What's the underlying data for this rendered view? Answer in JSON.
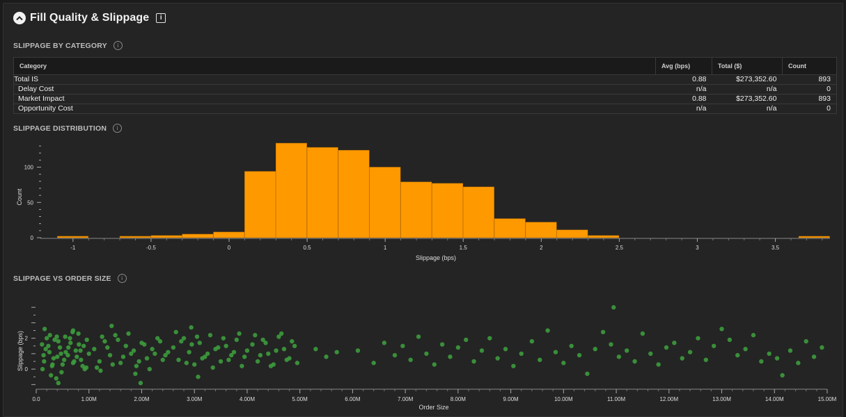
{
  "header": {
    "title": "Fill Quality & Slippage",
    "info_glyph": "i",
    "collapse_icon": "chevron-up-icon"
  },
  "sections": {
    "category": "SLIPPAGE BY CATEGORY",
    "distribution": "SLIPPAGE DISTRIBUTION",
    "vs_size": "SLIPPAGE VS ORDER SIZE",
    "info_glyph": "i"
  },
  "table": {
    "columns": [
      "Category",
      "Avg (bps)",
      "Total ($)",
      "Count"
    ],
    "rows": [
      {
        "category": "Total IS",
        "avg": "0.88",
        "total": "$273,352.60",
        "count": "893"
      },
      {
        "category": "Delay Cost",
        "avg": "n/a",
        "total": "n/a",
        "count": "0"
      },
      {
        "category": "Market Impact",
        "avg": "0.88",
        "total": "$273,352.60",
        "count": "893"
      },
      {
        "category": "Opportunity Cost",
        "avg": "n/a",
        "total": "n/a",
        "count": "0"
      }
    ]
  },
  "colors": {
    "histogram": "#ff9900",
    "scatter": "#3d9b3d",
    "background": "#242424"
  },
  "chart_data": [
    {
      "type": "bar",
      "title": "SLIPPAGE DISTRIBUTION",
      "xlabel": "Slippage (bps)",
      "ylabel": "Count",
      "bin_width": 0.2,
      "xlim": [
        -1.2,
        3.85
      ],
      "ylim": [
        0,
        135
      ],
      "x_ticks": [
        "-1",
        "-0.5",
        "0",
        "0.5",
        "1",
        "1.5",
        "2",
        "2.5",
        "3",
        "3.5"
      ],
      "y_ticks": [
        "0",
        "50",
        "100"
      ],
      "bins": [
        {
          "start": -1.1,
          "count": 2
        },
        {
          "start": -0.7,
          "count": 2
        },
        {
          "start": -0.5,
          "count": 3
        },
        {
          "start": -0.3,
          "count": 5
        },
        {
          "start": -0.1,
          "count": 8
        },
        {
          "start": 0.1,
          "count": 94
        },
        {
          "start": 0.3,
          "count": 134
        },
        {
          "start": 0.5,
          "count": 128
        },
        {
          "start": 0.7,
          "count": 124
        },
        {
          "start": 0.9,
          "count": 100
        },
        {
          "start": 1.1,
          "count": 79
        },
        {
          "start": 1.3,
          "count": 77
        },
        {
          "start": 1.5,
          "count": 72
        },
        {
          "start": 1.7,
          "count": 27
        },
        {
          "start": 1.9,
          "count": 22
        },
        {
          "start": 2.1,
          "count": 11
        },
        {
          "start": 2.3,
          "count": 3
        },
        {
          "start": 3.65,
          "count": 1
        }
      ],
      "grid": false
    },
    {
      "type": "scatter",
      "title": "SLIPPAGE VS ORDER SIZE",
      "xlabel": "Order Size",
      "ylabel": "Slippage (bps)",
      "xlim": [
        0,
        15000000
      ],
      "ylim": [
        -1.3,
        4.1
      ],
      "x_ticks": [
        "0.0",
        "1.00M",
        "2.00M",
        "3.00M",
        "4.00M",
        "5.00M",
        "6.00M",
        "7.00M",
        "8.00M",
        "9.00M",
        "10.00M",
        "11.00M",
        "12.00M",
        "13.00M",
        "14.00M",
        "15.00M"
      ],
      "y_ticks": [
        "0",
        "2"
      ],
      "points": [
        [
          110000,
          1.6
        ],
        [
          150000,
          0.5
        ],
        [
          200000,
          2.0
        ],
        [
          250000,
          1.1
        ],
        [
          300000,
          0.2
        ],
        [
          350000,
          1.9
        ],
        [
          400000,
          0.8
        ],
        [
          450000,
          1.4
        ],
        [
          500000,
          0.3
        ],
        [
          550000,
          2.1
        ],
        [
          600000,
          0.9
        ],
        [
          650000,
          1.7
        ],
        [
          700000,
          0.4
        ],
        [
          750000,
          1.2
        ],
        [
          800000,
          2.3
        ],
        [
          850000,
          0.6
        ],
        [
          900000,
          1.5
        ],
        [
          950000,
          0.1
        ],
        [
          1000000,
          1.0
        ],
        [
          120000,
          0.0
        ],
        [
          180000,
          1.3
        ],
        [
          260000,
          2.2
        ],
        [
          330000,
          0.7
        ],
        [
          420000,
          1.8
        ],
        [
          480000,
          -0.2
        ],
        [
          560000,
          1.1
        ],
        [
          640000,
          2.0
        ],
        [
          720000,
          0.5
        ],
        [
          810000,
          1.6
        ],
        [
          880000,
          0.2
        ],
        [
          960000,
          1.9
        ],
        [
          140000,
          0.9
        ],
        [
          230000,
          1.5
        ],
        [
          310000,
          0.3
        ],
        [
          390000,
          2.1
        ],
        [
          470000,
          1.0
        ],
        [
          530000,
          0.6
        ],
        [
          610000,
          1.4
        ],
        [
          690000,
          2.4
        ],
        [
          770000,
          0.8
        ],
        [
          840000,
          1.2
        ],
        [
          920000,
          0.0
        ],
        [
          160000,
          2.6
        ],
        [
          380000,
          -0.6
        ],
        [
          420000,
          -0.9
        ],
        [
          280000,
          -0.4
        ],
        [
          700000,
          2.5
        ],
        [
          1100000,
          1.3
        ],
        [
          1200000,
          0.5
        ],
        [
          1300000,
          1.8
        ],
        [
          1400000,
          0.9
        ],
        [
          1500000,
          2.2
        ],
        [
          1600000,
          0.4
        ],
        [
          1700000,
          1.5
        ],
        [
          1800000,
          1.0
        ],
        [
          1900000,
          0.2
        ],
        [
          2000000,
          1.7
        ],
        [
          2100000,
          0.7
        ],
        [
          2200000,
          1.3
        ],
        [
          2300000,
          2.0
        ],
        [
          2400000,
          0.6
        ],
        [
          2500000,
          1.1
        ],
        [
          1150000,
          0.1
        ],
        [
          1250000,
          2.1
        ],
        [
          1350000,
          1.4
        ],
        [
          1450000,
          0.3
        ],
        [
          1550000,
          1.9
        ],
        [
          1650000,
          0.8
        ],
        [
          1750000,
          2.3
        ],
        [
          1850000,
          1.2
        ],
        [
          1950000,
          0.5
        ],
        [
          2050000,
          1.6
        ],
        [
          2150000,
          0.0
        ],
        [
          2250000,
          1.0
        ],
        [
          2350000,
          1.8
        ],
        [
          2450000,
          0.9
        ],
        [
          1430000,
          2.8
        ],
        [
          1880000,
          -0.3
        ],
        [
          1980000,
          -0.9
        ],
        [
          1220000,
          -0.1
        ],
        [
          2600000,
          1.4
        ],
        [
          2700000,
          0.6
        ],
        [
          2800000,
          2.0
        ],
        [
          2900000,
          1.1
        ],
        [
          3000000,
          0.3
        ],
        [
          3100000,
          1.7
        ],
        [
          3200000,
          0.8
        ],
        [
          3300000,
          2.2
        ],
        [
          3400000,
          1.3
        ],
        [
          3500000,
          0.5
        ],
        [
          3600000,
          1.5
        ],
        [
          3700000,
          0.9
        ],
        [
          3800000,
          1.9
        ],
        [
          3900000,
          0.2
        ],
        [
          4000000,
          1.2
        ],
        [
          2650000,
          2.4
        ],
        [
          2750000,
          1.8
        ],
        [
          2850000,
          0.4
        ],
        [
          2950000,
          1.6
        ],
        [
          3050000,
          2.1
        ],
        [
          3150000,
          0.7
        ],
        [
          3250000,
          1.0
        ],
        [
          3350000,
          0.1
        ],
        [
          3450000,
          1.4
        ],
        [
          3550000,
          2.0
        ],
        [
          3650000,
          0.6
        ],
        [
          3750000,
          1.1
        ],
        [
          3850000,
          2.3
        ],
        [
          3950000,
          0.8
        ],
        [
          2940000,
          2.7
        ],
        [
          3070000,
          -0.5
        ],
        [
          4100000,
          1.6
        ],
        [
          4200000,
          0.5
        ],
        [
          4300000,
          1.9
        ],
        [
          4400000,
          1.0
        ],
        [
          4500000,
          0.3
        ],
        [
          4600000,
          2.1
        ],
        [
          4700000,
          1.3
        ],
        [
          4800000,
          0.7
        ],
        [
          4900000,
          1.5
        ],
        [
          4150000,
          2.2
        ],
        [
          4250000,
          0.9
        ],
        [
          4350000,
          1.7
        ],
        [
          4450000,
          0.2
        ],
        [
          4550000,
          1.2
        ],
        [
          4650000,
          2.3
        ],
        [
          4750000,
          0.6
        ],
        [
          4850000,
          1.8
        ],
        [
          4950000,
          0.4
        ],
        [
          5300000,
          1.3
        ],
        [
          5500000,
          0.8
        ],
        [
          5700000,
          1.1
        ],
        [
          6100000,
          1.2
        ],
        [
          6400000,
          0.4
        ],
        [
          6600000,
          1.7
        ],
        [
          6800000,
          0.9
        ],
        [
          6950000,
          1.5
        ],
        [
          7100000,
          0.6
        ],
        [
          7250000,
          2.1
        ],
        [
          7400000,
          1.0
        ],
        [
          7550000,
          0.3
        ],
        [
          7700000,
          1.6
        ],
        [
          7850000,
          0.8
        ],
        [
          8000000,
          1.4
        ],
        [
          8150000,
          1.9
        ],
        [
          8300000,
          0.5
        ],
        [
          8450000,
          1.2
        ],
        [
          8600000,
          2.0
        ],
        [
          8750000,
          0.7
        ],
        [
          8900000,
          1.3
        ],
        [
          9050000,
          0.2
        ],
        [
          9200000,
          1.0
        ],
        [
          9400000,
          1.8
        ],
        [
          9550000,
          0.6
        ],
        [
          9700000,
          2.5
        ],
        [
          9850000,
          1.1
        ],
        [
          10000000,
          0.4
        ],
        [
          10150000,
          1.5
        ],
        [
          10300000,
          0.9
        ],
        [
          10450000,
          -0.3
        ],
        [
          10600000,
          1.3
        ],
        [
          10750000,
          2.4
        ],
        [
          10900000,
          1.6
        ],
        [
          10950000,
          4.0
        ],
        [
          11050000,
          0.8
        ],
        [
          11200000,
          1.2
        ],
        [
          11350000,
          0.5
        ],
        [
          11500000,
          2.3
        ],
        [
          11650000,
          1.0
        ],
        [
          11800000,
          0.3
        ],
        [
          11950000,
          1.4
        ],
        [
          12100000,
          1.7
        ],
        [
          12250000,
          0.7
        ],
        [
          12400000,
          1.1
        ],
        [
          12550000,
          2.0
        ],
        [
          12700000,
          0.6
        ],
        [
          12850000,
          1.5
        ],
        [
          13000000,
          2.6
        ],
        [
          13150000,
          1.9
        ],
        [
          13300000,
          0.9
        ],
        [
          13450000,
          1.3
        ],
        [
          13600000,
          2.2
        ],
        [
          13750000,
          0.5
        ],
        [
          13900000,
          1.0
        ],
        [
          14050000,
          0.7
        ],
        [
          14150000,
          -0.4
        ],
        [
          14300000,
          1.2
        ],
        [
          14450000,
          0.4
        ],
        [
          14600000,
          1.8
        ],
        [
          14750000,
          0.8
        ],
        [
          14900000,
          1.4
        ]
      ],
      "grid": false
    }
  ]
}
